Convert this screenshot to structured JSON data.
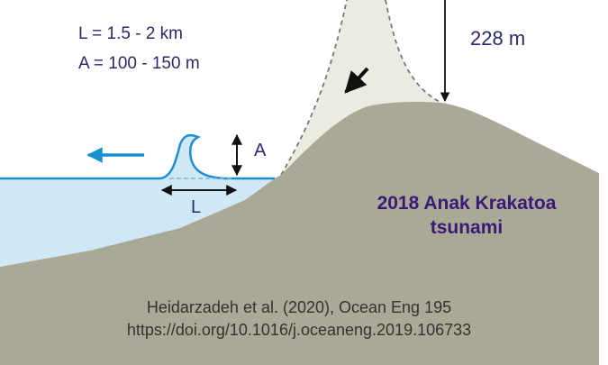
{
  "params": {
    "length_text": "L = 1.5 - 2 km",
    "amplitude_text": "A = 100 - 150 m"
  },
  "height_text": "228 m",
  "wave_labels": {
    "amplitude": "A",
    "length": "L"
  },
  "event_title": {
    "line1": "2018 Anak Krakatoa",
    "line2": "tsunami"
  },
  "citation": {
    "line1": "Heidarzadeh et al. (2020), Ocean Eng 195",
    "line2": "https://doi.org/10.1016/j.oceaneng.2019.106733"
  },
  "colors": {
    "water_fill": "#cfe8f6",
    "water_line": "#1d8fd0",
    "land_fill": "#a9a995",
    "collapsed_flank_fill": "#ecebe2",
    "text_dark_blue": "#2a2a6a",
    "title_purple": "#3a1a78",
    "citation_text": "#333333",
    "arrow_blue": "#1d8fd0"
  },
  "icons": {
    "wave_direction": "arrow-left-icon",
    "collapse_direction": "arrow-down-left-icon",
    "height_marker": "arrow-down-icon"
  }
}
